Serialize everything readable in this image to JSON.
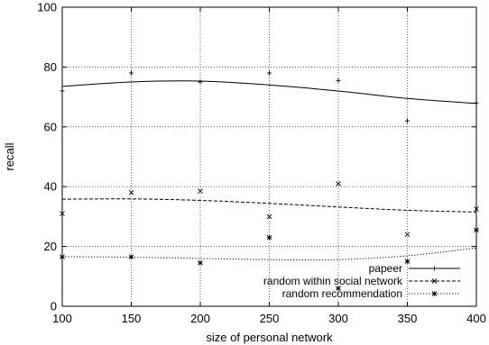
{
  "chart_data": {
    "type": "scatter",
    "xlabel": "size of personal network",
    "ylabel": "recall",
    "xlim": [
      100,
      400
    ],
    "ylim": [
      0,
      100
    ],
    "xticks": [
      100,
      150,
      200,
      250,
      300,
      350,
      400
    ],
    "yticks": [
      0,
      20,
      40,
      60,
      80,
      100
    ],
    "grid": true,
    "legend_position": "bottom-right",
    "series": [
      {
        "name": "papeer",
        "marker": "+",
        "line_style": "solid",
        "x": [
          100,
          150,
          200,
          250,
          300,
          350,
          400
        ],
        "y": [
          72,
          78,
          75,
          78,
          75.5,
          62,
          68
        ],
        "fit_x": [
          100,
          150,
          200,
          250,
          300,
          350,
          400
        ],
        "fit_y": [
          73.5,
          75,
          75.3,
          74,
          72,
          69.5,
          67.8
        ]
      },
      {
        "name": "random within social network",
        "marker": "x",
        "line_style": "dashed",
        "x": [
          100,
          150,
          200,
          250,
          300,
          350,
          400
        ],
        "y": [
          31,
          38,
          38.5,
          30,
          41,
          24,
          32.5
        ],
        "fit_x": [
          100,
          150,
          200,
          250,
          300,
          350,
          400
        ],
        "fit_y": [
          35.8,
          35.9,
          35.4,
          34.4,
          33.2,
          32.1,
          31.5
        ]
      },
      {
        "name": "random recommendation",
        "marker": "*",
        "line_style": "dotted",
        "x": [
          100,
          150,
          200,
          250,
          300,
          350,
          400
        ],
        "y": [
          16.5,
          16.5,
          14.5,
          23,
          6,
          15,
          25.5
        ],
        "fit_x": [
          100,
          150,
          200,
          250,
          300,
          350,
          400
        ],
        "fit_y": [
          16.6,
          16.4,
          16.0,
          15.6,
          15.6,
          16.9,
          19.5
        ]
      }
    ]
  }
}
